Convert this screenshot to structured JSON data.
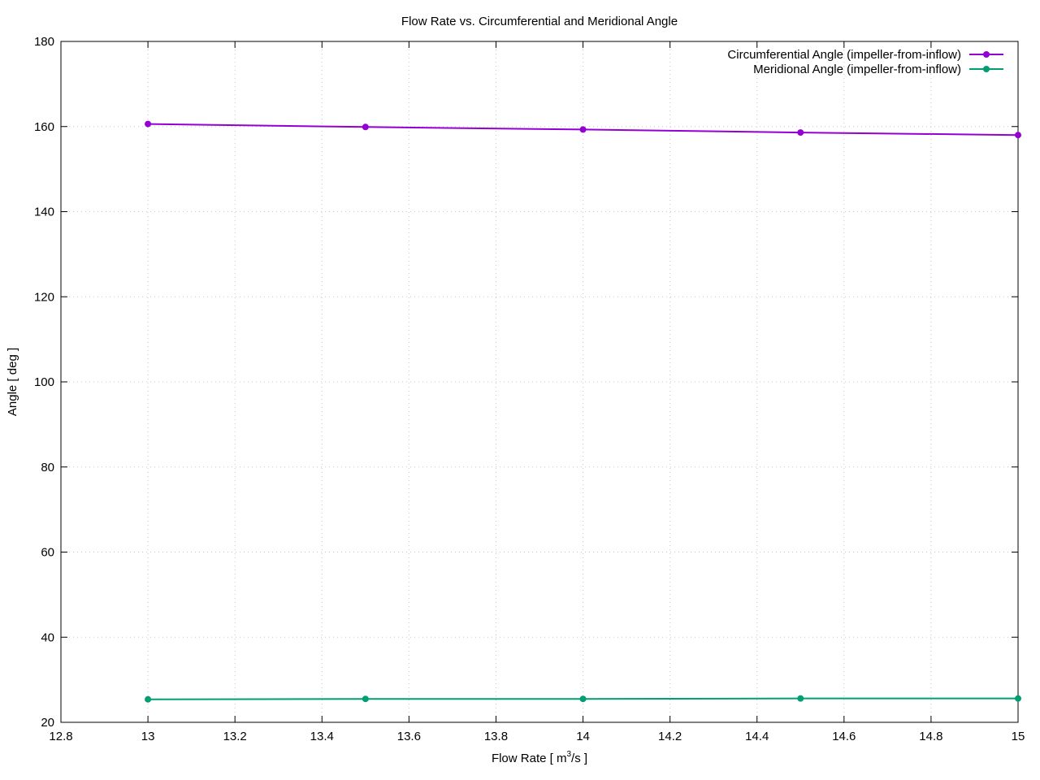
{
  "chart_data": {
    "type": "line",
    "title": "Flow Rate vs. Circumferential and Meridional Angle",
    "xlabel": {
      "pre": "Flow Rate [ m",
      "sup": "3",
      "post": "/s ]"
    },
    "ylabel": "Angle [ deg ]",
    "xlim": [
      12.8,
      15
    ],
    "ylim": [
      20,
      180
    ],
    "xticks": [
      12.8,
      13,
      13.2,
      13.4,
      13.6,
      13.8,
      14,
      14.2,
      14.4,
      14.6,
      14.8,
      15
    ],
    "xtick_labels": [
      "12.8",
      "13",
      "13.2",
      "13.4",
      "13.6",
      "13.8",
      "14",
      "14.2",
      "14.4",
      "14.6",
      "14.8",
      "15"
    ],
    "yticks": [
      20,
      40,
      60,
      80,
      100,
      120,
      140,
      160,
      180
    ],
    "ytick_labels": [
      "20",
      "40",
      "60",
      "80",
      "100",
      "120",
      "140",
      "160",
      "180"
    ],
    "grid": true,
    "legend_position": "top-right",
    "series": [
      {
        "name": "Circumferential Angle (impeller-from-inflow)",
        "color": "#9400d3",
        "x": [
          13.0,
          13.5,
          14.0,
          14.5,
          15.0
        ],
        "y": [
          160.6,
          159.9,
          159.3,
          158.6,
          158.0
        ]
      },
      {
        "name": "Meridional Angle (impeller-from-inflow)",
        "color": "#009e73",
        "x": [
          13.0,
          13.5,
          14.0,
          14.5,
          15.0
        ],
        "y": [
          25.4,
          25.5,
          25.5,
          25.6,
          25.6
        ]
      }
    ]
  }
}
